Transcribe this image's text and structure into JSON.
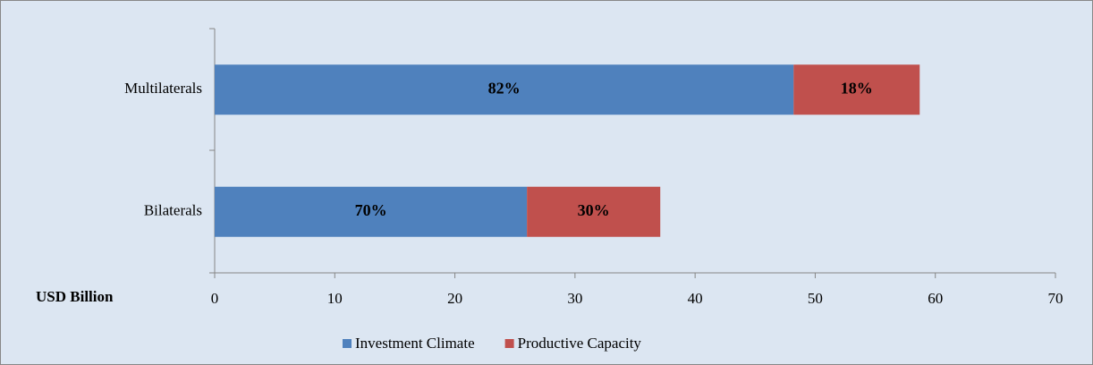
{
  "chart_data": {
    "type": "bar",
    "orientation": "horizontal",
    "stacked": true,
    "categories": [
      "Multilaterals",
      "Bilaterals"
    ],
    "xlabel": "USD Billion",
    "xlim": [
      0,
      70
    ],
    "xticks": [
      0,
      10,
      20,
      30,
      40,
      50,
      60,
      70
    ],
    "legend": "bottom",
    "series": [
      {
        "name": "Investment Climate",
        "color": "#4f81bd",
        "values": [
          48.2,
          26
        ],
        "value_labels": [
          "82%",
          "70%"
        ]
      },
      {
        "name": "Productive Capacity",
        "color": "#c0504d",
        "values": [
          10.5,
          11.1
        ],
        "value_labels": [
          "18%",
          "30%"
        ]
      }
    ]
  }
}
